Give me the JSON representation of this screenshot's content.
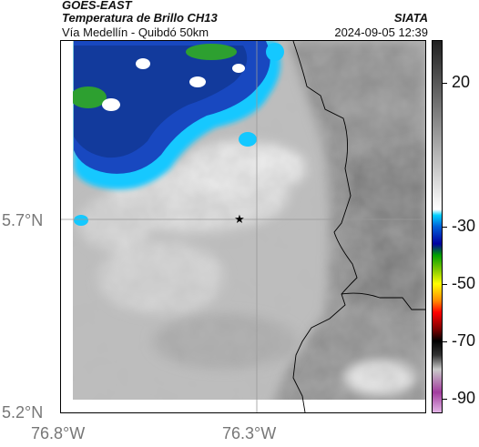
{
  "header": {
    "satellite": "GOES-EAST",
    "product": "Temperatura de Brillo CH13",
    "region": "Vía Medellín - Quibdó 50km",
    "organization": "SIATA",
    "timestamp": "2024-09-05 12:39"
  },
  "axes": {
    "lat_ticks": [
      "5.7°N",
      "5.2°N"
    ],
    "lon_ticks": [
      "76.8°W",
      "76.3°W"
    ]
  },
  "colorbar": {
    "labels": [
      "20",
      "-30",
      "-50",
      "-70",
      "-90"
    ],
    "values": [
      20,
      -30,
      -50,
      -70,
      -90
    ],
    "range": [
      -95,
      35
    ],
    "stops": [
      {
        "v": -95,
        "c": "#e2b4e6"
      },
      {
        "v": -88,
        "c": "#a23c9e"
      },
      {
        "v": -80,
        "c": "#c9c9c9"
      },
      {
        "v": -75,
        "c": "#333333"
      },
      {
        "v": -70,
        "c": "#000000"
      },
      {
        "v": -66,
        "c": "#7a0000"
      },
      {
        "v": -60,
        "c": "#ff0000"
      },
      {
        "v": -56,
        "c": "#ff8800"
      },
      {
        "v": -50,
        "c": "#ffff00"
      },
      {
        "v": -45,
        "c": "#7fc800"
      },
      {
        "v": -40,
        "c": "#00a000"
      },
      {
        "v": -36,
        "c": "#0000a0"
      },
      {
        "v": -30,
        "c": "#0060d8"
      },
      {
        "v": -26,
        "c": "#00d0ff"
      },
      {
        "v": -24,
        "c": "#ffffff"
      },
      {
        "v": 5,
        "c": "#909090"
      },
      {
        "v": 35,
        "c": "#202020"
      }
    ]
  },
  "map": {
    "marker": "star-icon",
    "colors": {
      "gridline": "#999999",
      "boundary": "#000000"
    }
  }
}
